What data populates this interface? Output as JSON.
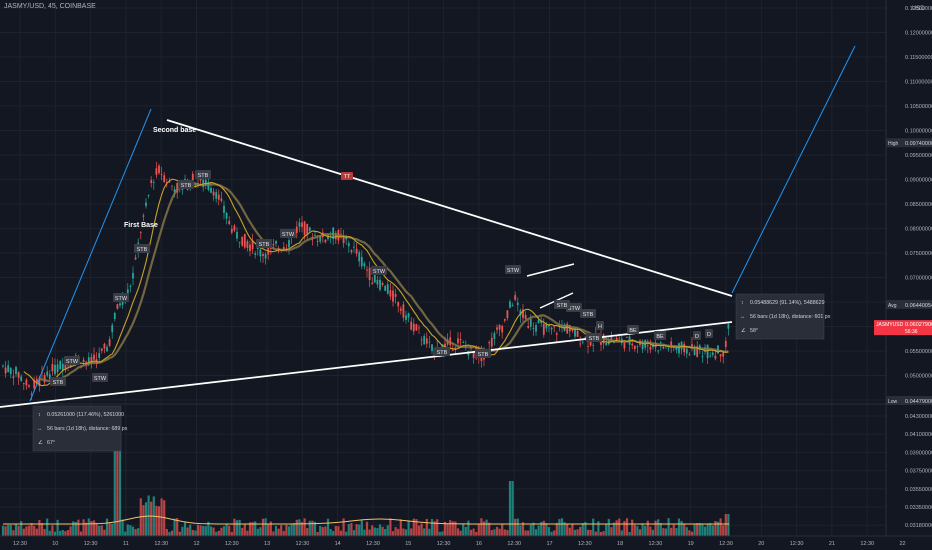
{
  "header": {
    "symbol": "JASMY/USD, 45, COINBASE",
    "currency": "USD"
  },
  "price_axis": {
    "ticks": [
      "0.12500000",
      "0.12000000",
      "0.11500000",
      "0.11000000",
      "0.10500000",
      "0.10000000",
      "0.09500000",
      "0.09000000",
      "0.08500000",
      "0.08000000",
      "0.07500000",
      "0.07000000",
      "0.06500000",
      "0.06000000",
      "0.05500000",
      "0.05000000",
      "0.04500000"
    ],
    "markers": [
      {
        "label": "High",
        "value": "0.09740000",
        "color": "#131722"
      },
      {
        "label": "Avg",
        "value": "0.06440054",
        "color": "#131722"
      },
      {
        "label": "JASMYUSD",
        "value": "0.06027900",
        "sub": "56:36",
        "color": "#f23645"
      },
      {
        "label": "Low",
        "value": "0.04479000",
        "color": "#131722"
      }
    ]
  },
  "volume_axis": {
    "ticks": [
      "0.04300000",
      "0.04100000",
      "0.03900000",
      "0.03750000",
      "0.03550000",
      "0.03350000",
      "0.03180000"
    ]
  },
  "time_axis": {
    "ticks": [
      "12:30",
      "10",
      "12:30",
      "11",
      "12:30",
      "12",
      "12:30",
      "13",
      "12:30",
      "14",
      "12:30",
      "15",
      "12:30",
      "16",
      "12:30",
      "17",
      "12:30",
      "18",
      "12:30",
      "19",
      "12:30",
      "20",
      "12:30",
      "21",
      "12:30",
      "22"
    ]
  },
  "annotations": {
    "first_base": "First Base",
    "second_base": "Second base",
    "badges": [
      {
        "text": "STB"
      },
      {
        "text": "STW"
      },
      {
        "text": "STW"
      },
      {
        "text": "STW"
      },
      {
        "text": "STB"
      },
      {
        "text": "STB"
      },
      {
        "text": "STB"
      },
      {
        "text": "STB"
      },
      {
        "text": "STW"
      },
      {
        "text": "STW"
      },
      {
        "text": "STB"
      },
      {
        "text": "STW"
      },
      {
        "text": "STB"
      },
      {
        "text": "STW"
      },
      {
        "text": "STB"
      },
      {
        "text": "STB"
      },
      {
        "text": "BE"
      },
      {
        "text": "BE"
      },
      {
        "text": "D"
      },
      {
        "text": "D"
      },
      {
        "text": "H"
      },
      {
        "text": "STB"
      }
    ],
    "tt_badge": "TT"
  },
  "measure_boxes": [
    {
      "line1": "0.05261000 (117.46%), 5261000",
      "line2": "56 bars (1d 18h), distance: 689 px",
      "line3": "67°"
    },
    {
      "line1": "0.05488629 (91.14%), 5488629",
      "line2": "56 bars (1d 18h), distance: 601 px",
      "line3": "58°"
    }
  ],
  "colors": {
    "up": "#26a69a",
    "down": "#ef5350",
    "ma_fast": "#c9a227",
    "ma_slow": "#8a7a4a",
    "projection": "#2196f3",
    "trendline": "#ffffff"
  },
  "chart_data": {
    "type": "line",
    "title": "JASMY/USD, 45, COINBASE",
    "xlabel": "",
    "ylabel": "USD",
    "ylim": [
      0.045,
      0.125
    ],
    "series": [
      {
        "name": "JASMY/USD, 45, COINBASE",
        "x": [
          "9 12:30",
          "10",
          "10 12:30",
          "11",
          "11 12:30",
          "12",
          "12 12:30",
          "13",
          "13 12:30",
          "14",
          "14 12:30",
          "15",
          "15 12:30",
          "16",
          "16 12:30",
          "17",
          "17 12:30",
          "18",
          "18 12:30",
          "19",
          "19 12:30"
        ],
        "values": [
          0.048,
          0.052,
          0.056,
          0.065,
          0.091,
          0.089,
          0.082,
          0.072,
          0.082,
          0.078,
          0.072,
          0.059,
          0.052,
          0.057,
          0.064,
          0.059,
          0.0575,
          0.0565,
          0.056,
          0.0555,
          0.0603
        ]
      }
    ],
    "levels": {
      "high": 0.0974,
      "avg": 0.06440054,
      "last": 0.060279,
      "low": 0.04479
    }
  }
}
